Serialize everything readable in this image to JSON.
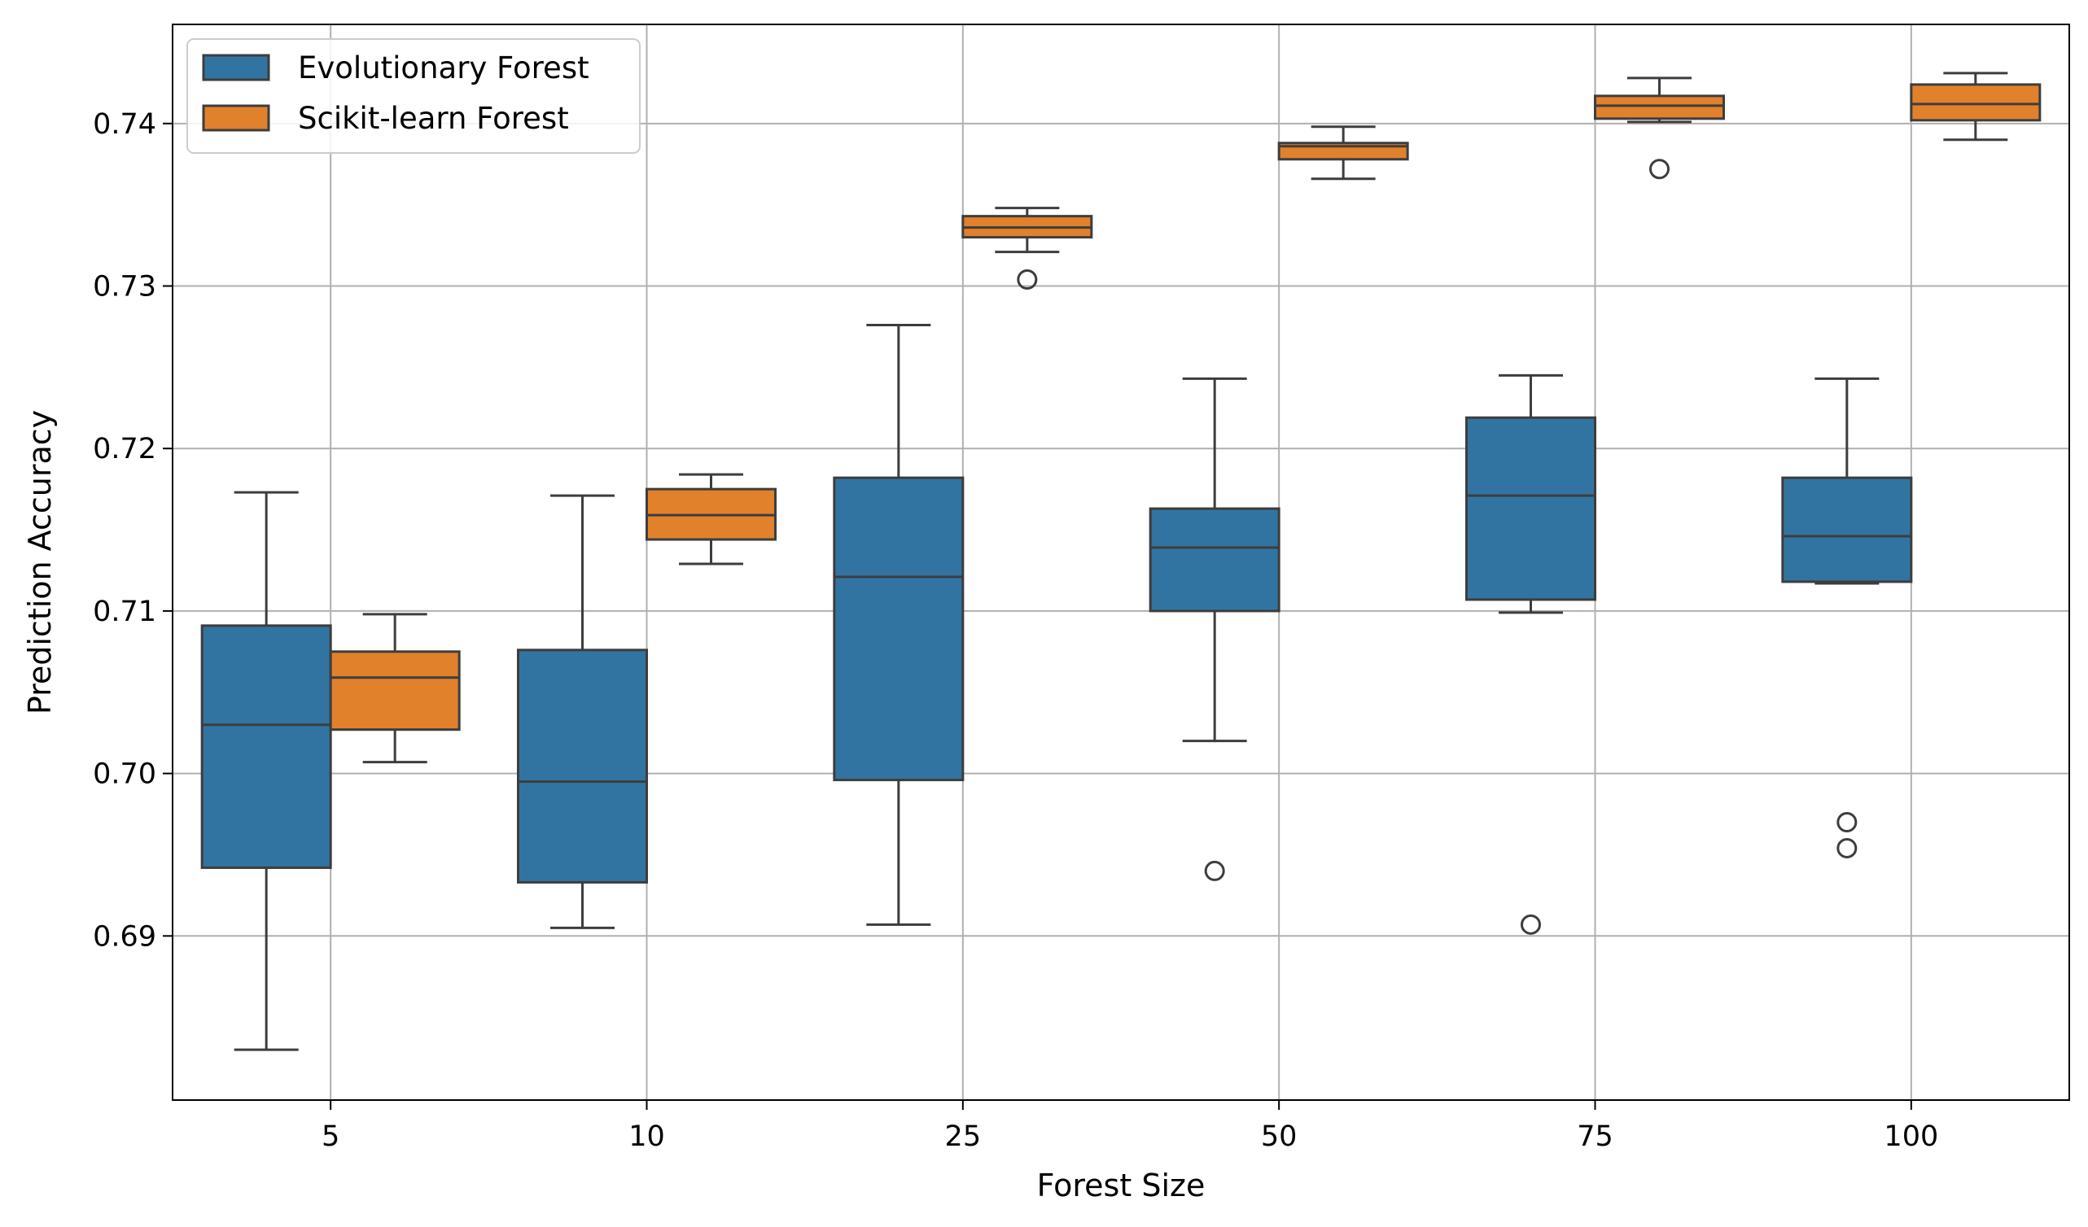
{
  "chart_data": {
    "type": "boxplot",
    "title": "",
    "xlabel": "Forest Size",
    "ylabel": "Prediction Accuracy",
    "categories": [
      "5",
      "10",
      "25",
      "50",
      "75",
      "100"
    ],
    "yticks": [
      "0.69",
      "0.70",
      "0.71",
      "0.72",
      "0.73",
      "0.74"
    ],
    "ylim": [
      0.6799,
      0.7461
    ],
    "grid": true,
    "legend_position": "top-left",
    "series": [
      {
        "name": "Evolutionary Forest",
        "color": "#3274a1",
        "boxes": [
          {
            "whisker_low": 0.683,
            "q1": 0.6942,
            "median": 0.703,
            "q3": 0.7091,
            "whisker_high": 0.7173,
            "outliers": []
          },
          {
            "whisker_low": 0.6905,
            "q1": 0.6933,
            "median": 0.6995,
            "q3": 0.7076,
            "whisker_high": 0.7171,
            "outliers": []
          },
          {
            "whisker_low": 0.6907,
            "q1": 0.6996,
            "median": 0.7121,
            "q3": 0.7182,
            "whisker_high": 0.7276,
            "outliers": []
          },
          {
            "whisker_low": 0.702,
            "q1": 0.71,
            "median": 0.7139,
            "q3": 0.7163,
            "whisker_high": 0.7243,
            "outliers": [
              0.694
            ]
          },
          {
            "whisker_low": 0.7099,
            "q1": 0.7107,
            "median": 0.7171,
            "q3": 0.7219,
            "whisker_high": 0.7245,
            "outliers": [
              0.6907
            ]
          },
          {
            "whisker_low": 0.7117,
            "q1": 0.7118,
            "median": 0.7146,
            "q3": 0.7182,
            "whisker_high": 0.7243,
            "outliers": [
              0.697,
              0.6954
            ]
          }
        ]
      },
      {
        "name": "Scikit-learn Forest",
        "color": "#e1812c",
        "boxes": [
          {
            "whisker_low": 0.7007,
            "q1": 0.7027,
            "median": 0.7059,
            "q3": 0.7075,
            "whisker_high": 0.7098,
            "outliers": []
          },
          {
            "whisker_low": 0.7129,
            "q1": 0.7144,
            "median": 0.7159,
            "q3": 0.7175,
            "whisker_high": 0.7184,
            "outliers": []
          },
          {
            "whisker_low": 0.7321,
            "q1": 0.733,
            "median": 0.7336,
            "q3": 0.7343,
            "whisker_high": 0.7348,
            "outliers": [
              0.7304
            ]
          },
          {
            "whisker_low": 0.7366,
            "q1": 0.7378,
            "median": 0.7386,
            "q3": 0.7388,
            "whisker_high": 0.7398,
            "outliers": []
          },
          {
            "whisker_low": 0.7401,
            "q1": 0.7403,
            "median": 0.7411,
            "q3": 0.7417,
            "whisker_high": 0.7428,
            "outliers": [
              0.7372
            ]
          },
          {
            "whisker_low": 0.739,
            "q1": 0.7402,
            "median": 0.7412,
            "q3": 0.7424,
            "whisker_high": 0.7431,
            "outliers": []
          }
        ]
      }
    ]
  }
}
